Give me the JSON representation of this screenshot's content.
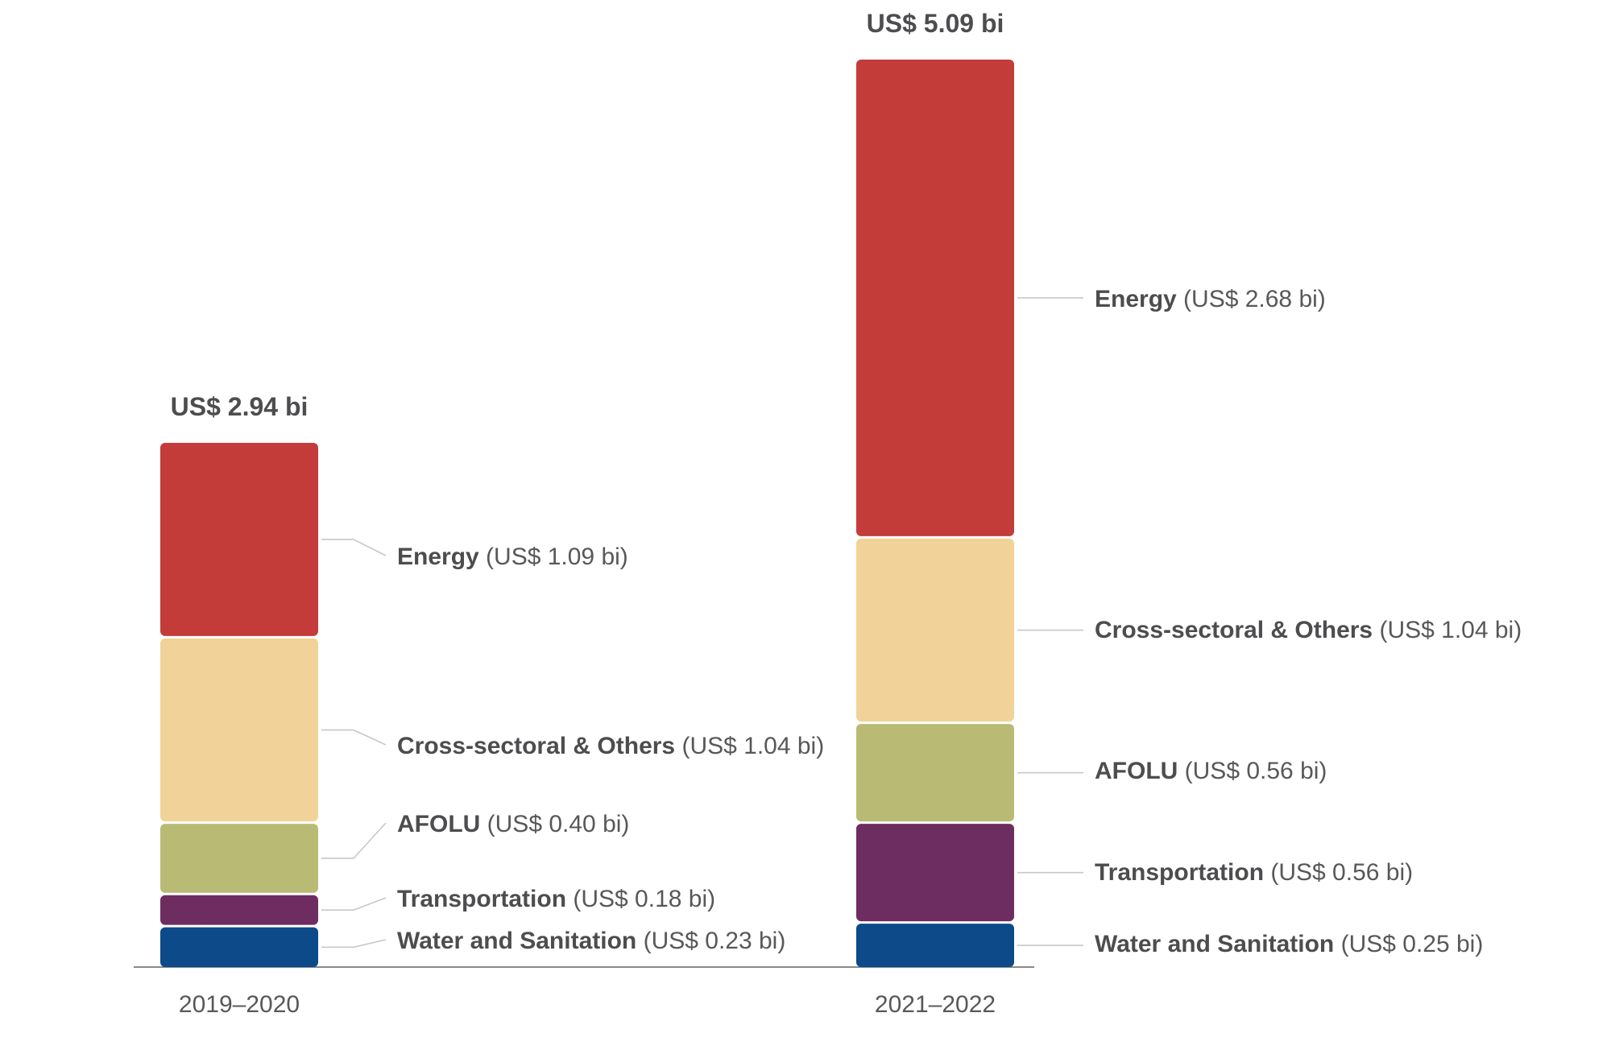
{
  "chart_data": {
    "type": "bar",
    "stacked": true,
    "unit": "US$ bi",
    "categories": [
      "2019–2020",
      "2021–2022"
    ],
    "totals": [
      "US$ 2.94 bi",
      "US$ 5.09 bi"
    ],
    "series": [
      {
        "name": "Water and Sanitation",
        "color": "#0c4a8a",
        "values": [
          0.23,
          0.25
        ],
        "value_labels": [
          "(US$ 0.23 bi)",
          "(US$ 0.25 bi)"
        ]
      },
      {
        "name": "Transportation",
        "color": "#6e2d60",
        "values": [
          0.18,
          0.56
        ],
        "value_labels": [
          "(US$ 0.18 bi)",
          "(US$ 0.56 bi)"
        ]
      },
      {
        "name": "AFOLU",
        "color": "#b9bb75",
        "values": [
          0.4,
          0.56
        ],
        "value_labels": [
          "(US$ 0.40 bi)",
          "(US$ 0.56 bi)"
        ]
      },
      {
        "name": "Cross-sectoral & Others",
        "color": "#f1d399",
        "values": [
          1.04,
          1.04
        ],
        "value_labels": [
          "(US$ 1.04 bi)",
          "(US$ 1.04 bi)"
        ]
      },
      {
        "name": "Energy",
        "color": "#c33c3a",
        "values": [
          1.09,
          2.68
        ],
        "value_labels": [
          "(US$ 1.09 bi)",
          "(US$ 2.68 bi)"
        ]
      }
    ],
    "title": "",
    "xlabel": "",
    "ylabel": "",
    "ylim": [
      0,
      5.09
    ],
    "grid": false,
    "legend": "none"
  }
}
